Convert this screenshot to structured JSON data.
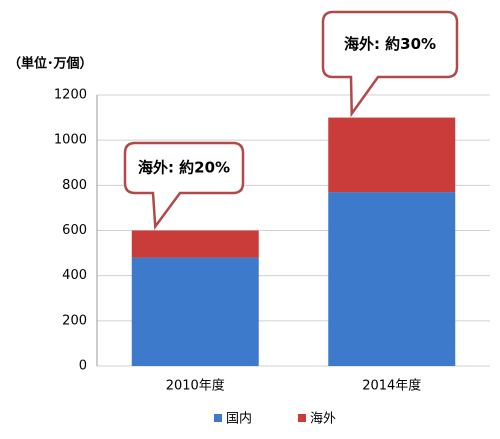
{
  "chart_data": {
    "type": "stacked_bar",
    "y_axis_label": "（単位･万個）",
    "categories": [
      "2010年度",
      "2014年度"
    ],
    "series": [
      {
        "name": "国内",
        "color": "#3d7acb",
        "values": [
          480,
          770
        ]
      },
      {
        "name": "海外",
        "color": "#c93c3a",
        "values": [
          120,
          330
        ]
      }
    ],
    "annotations": [
      "海外: 約20%",
      "海外: 約30%"
    ],
    "ylim": [
      0,
      1200
    ],
    "yticks": [
      0,
      200,
      400,
      600,
      800,
      1000,
      1200
    ],
    "grid": true,
    "legend": "bottom"
  }
}
